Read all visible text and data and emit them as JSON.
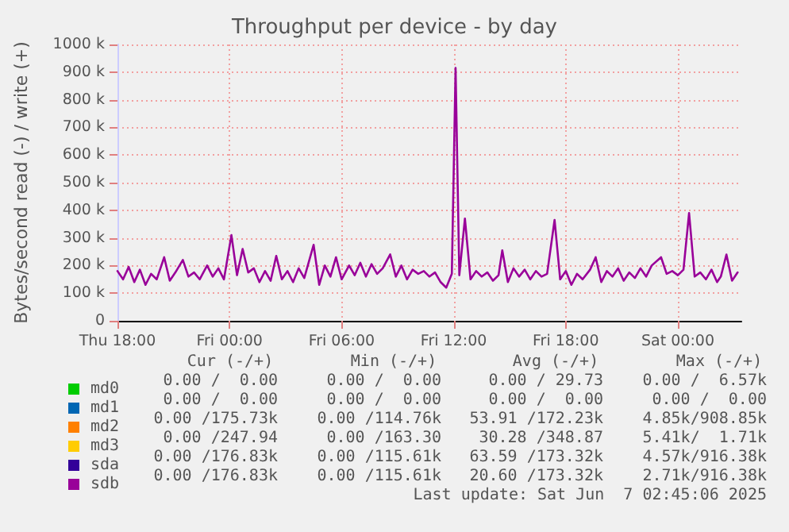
{
  "chart_data": {
    "type": "line",
    "title": "Throughput per device - by day",
    "ylabel": "Bytes/second read (-) / write (+)",
    "xlim": [
      "2025-06-05T18:00",
      "2025-06-07T03:24"
    ],
    "xticks": [
      {
        "value": "2025-06-05T18:00",
        "label": "Thu 18:00"
      },
      {
        "value": "2025-06-06T00:00",
        "label": "Fri 00:00"
      },
      {
        "value": "2025-06-06T06:00",
        "label": "Fri 06:00"
      },
      {
        "value": "2025-06-06T12:00",
        "label": "Fri 12:00"
      },
      {
        "value": "2025-06-06T18:00",
        "label": "Fri 18:00"
      },
      {
        "value": "2025-06-07T00:00",
        "label": "Sat 00:00"
      }
    ],
    "ylim": [
      0,
      1000000
    ],
    "yticks": [
      {
        "value": 0,
        "label": "0"
      },
      {
        "value": 100000,
        "label": "100 k"
      },
      {
        "value": 200000,
        "label": "200 k"
      },
      {
        "value": 300000,
        "label": "300 k"
      },
      {
        "value": 400000,
        "label": "400 k"
      },
      {
        "value": 500000,
        "label": "500 k"
      },
      {
        "value": 600000,
        "label": "600 k"
      },
      {
        "value": 700000,
        "label": "700 k"
      },
      {
        "value": 800000,
        "label": "800 k"
      },
      {
        "value": 900000,
        "label": "900 k"
      },
      {
        "value": 1000000,
        "label": "1000 k"
      }
    ],
    "grid": true,
    "legend": "bottom",
    "marker": "none",
    "line_style": "solid",
    "series": [
      {
        "name": "md0",
        "color": "#00cc00"
      },
      {
        "name": "md1",
        "color": "#0066b3"
      },
      {
        "name": "md2",
        "color": "#ff8000"
      },
      {
        "name": "md3",
        "color": "#ffcc00"
      },
      {
        "name": "sda",
        "color": "#330099"
      },
      {
        "name": "sdb",
        "color": "#990099",
        "x": [
          "2025-06-05T18:00",
          "2025-06-05T18:18",
          "2025-06-05T18:36",
          "2025-06-05T18:54",
          "2025-06-05T19:12",
          "2025-06-05T19:30",
          "2025-06-05T19:48",
          "2025-06-05T20:06",
          "2025-06-05T20:30",
          "2025-06-05T20:48",
          "2025-06-05T21:06",
          "2025-06-05T21:30",
          "2025-06-05T21:48",
          "2025-06-05T22:06",
          "2025-06-05T22:24",
          "2025-06-05T22:48",
          "2025-06-05T23:06",
          "2025-06-05T23:24",
          "2025-06-05T23:42",
          "2025-06-06T00:06",
          "2025-06-06T00:24",
          "2025-06-06T00:42",
          "2025-06-06T01:00",
          "2025-06-06T01:18",
          "2025-06-06T01:36",
          "2025-06-06T01:54",
          "2025-06-06T02:12",
          "2025-06-06T02:30",
          "2025-06-06T02:48",
          "2025-06-06T03:06",
          "2025-06-06T03:24",
          "2025-06-06T03:42",
          "2025-06-06T04:00",
          "2025-06-06T04:30",
          "2025-06-06T04:48",
          "2025-06-06T05:06",
          "2025-06-06T05:24",
          "2025-06-06T05:42",
          "2025-06-06T06:00",
          "2025-06-06T06:24",
          "2025-06-06T06:42",
          "2025-06-06T07:00",
          "2025-06-06T07:18",
          "2025-06-06T07:36",
          "2025-06-06T07:54",
          "2025-06-06T08:12",
          "2025-06-06T08:36",
          "2025-06-06T08:54",
          "2025-06-06T09:12",
          "2025-06-06T09:30",
          "2025-06-06T09:48",
          "2025-06-06T10:06",
          "2025-06-06T10:24",
          "2025-06-06T10:42",
          "2025-06-06T11:00",
          "2025-06-06T11:18",
          "2025-06-06T11:36",
          "2025-06-06T11:54",
          "2025-06-06T12:06",
          "2025-06-06T12:18",
          "2025-06-06T12:36",
          "2025-06-06T12:54",
          "2025-06-06T13:12",
          "2025-06-06T13:30",
          "2025-06-06T13:48",
          "2025-06-06T14:06",
          "2025-06-06T14:24",
          "2025-06-06T14:36",
          "2025-06-06T14:54",
          "2025-06-06T15:12",
          "2025-06-06T15:30",
          "2025-06-06T15:48",
          "2025-06-06T16:06",
          "2025-06-06T16:24",
          "2025-06-06T16:42",
          "2025-06-06T17:00",
          "2025-06-06T17:24",
          "2025-06-06T17:42",
          "2025-06-06T18:00",
          "2025-06-06T18:18",
          "2025-06-06T18:36",
          "2025-06-06T18:54",
          "2025-06-06T19:18",
          "2025-06-06T19:36",
          "2025-06-06T19:54",
          "2025-06-06T20:12",
          "2025-06-06T20:30",
          "2025-06-06T20:48",
          "2025-06-06T21:06",
          "2025-06-06T21:24",
          "2025-06-06T21:42",
          "2025-06-06T22:00",
          "2025-06-06T22:18",
          "2025-06-06T22:36",
          "2025-06-06T23:06",
          "2025-06-06T23:24",
          "2025-06-06T23:42",
          "2025-06-07T00:00",
          "2025-06-07T00:18",
          "2025-06-07T00:36",
          "2025-06-07T00:54",
          "2025-06-07T01:12",
          "2025-06-07T01:30",
          "2025-06-07T01:48",
          "2025-06-07T02:06",
          "2025-06-07T02:18",
          "2025-06-07T02:36",
          "2025-06-07T02:54",
          "2025-06-07T03:12"
        ],
        "values": [
          180000,
          150000,
          195000,
          140000,
          185000,
          130000,
          170000,
          150000,
          230000,
          145000,
          175000,
          220000,
          160000,
          175000,
          150000,
          200000,
          160000,
          190000,
          150000,
          310000,
          165000,
          260000,
          175000,
          190000,
          140000,
          180000,
          145000,
          235000,
          150000,
          180000,
          140000,
          190000,
          155000,
          275000,
          130000,
          200000,
          160000,
          230000,
          150000,
          200000,
          165000,
          210000,
          160000,
          205000,
          170000,
          190000,
          240000,
          160000,
          200000,
          150000,
          185000,
          170000,
          180000,
          160000,
          175000,
          140000,
          120000,
          170000,
          915000,
          165000,
          370000,
          150000,
          180000,
          160000,
          175000,
          145000,
          165000,
          255000,
          140000,
          190000,
          160000,
          185000,
          150000,
          180000,
          160000,
          170000,
          365000,
          150000,
          180000,
          130000,
          170000,
          150000,
          185000,
          230000,
          140000,
          180000,
          160000,
          190000,
          145000,
          175000,
          155000,
          190000,
          160000,
          200000,
          230000,
          170000,
          180000,
          165000,
          185000,
          390000,
          160000,
          175000,
          150000,
          185000,
          140000,
          160000,
          240000,
          145000,
          175000
        ]
      }
    ],
    "annotations": [
      "Cur (-/+)",
      "Min (-/+)",
      "Avg (-/+)",
      "Max (-/+)",
      "0.00 /  0.00",
      "0.00 /  0.00",
      "0.00 / 29.73",
      "0.00 /  6.57k",
      "0.00 /  0.00",
      "0.00 /  0.00",
      "0.00 /  0.00",
      "0.00 /  0.00",
      "0.00 /175.73k",
      "0.00 /114.76k",
      "53.91 /172.23k",
      "4.85k/908.85k",
      "0.00 /247.94",
      "0.00 /163.30",
      "30.28 /348.87",
      "5.41k/  1.71k",
      "0.00 /176.83k",
      "0.00 /115.61k",
      "63.59 /173.32k",
      "4.57k/916.38k",
      "0.00 /176.83k",
      "0.00 /115.61k",
      "20.60 /173.32k",
      "2.71k/916.38k",
      "Last update: Sat Jun  7 02:45:06 2025"
    ]
  }
}
